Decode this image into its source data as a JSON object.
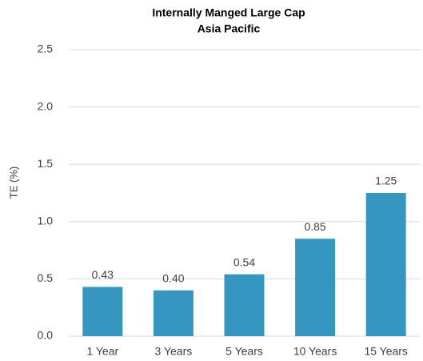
{
  "chart_data": {
    "type": "bar",
    "title": "Internally Manged Large Cap",
    "subtitle": "Asia Pacific",
    "y_label": "TE (%)",
    "categories": [
      "1 Year",
      "3 Years",
      "5 Years",
      "10 Years",
      "15 Years"
    ],
    "values": [
      0.43,
      0.4,
      0.54,
      0.85,
      1.25
    ],
    "value_labels": [
      "0.43",
      "0.40",
      "0.54",
      "0.85",
      "1.25"
    ],
    "color": "#3597c0",
    "ylim": [
      0,
      2.5
    ],
    "yticks": [
      {
        "value": 0,
        "label": "0.0"
      },
      0.5,
      {
        "value": 1,
        "label": "1.0"
      },
      1.5,
      {
        "value": 2,
        "label": "2.0"
      },
      2.5
    ],
    "grid": true
  }
}
